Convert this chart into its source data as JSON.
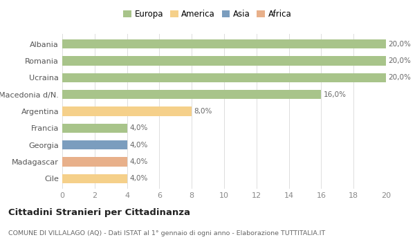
{
  "countries": [
    "Albania",
    "Romania",
    "Ucraina",
    "Macedonia d/N.",
    "Argentina",
    "Francia",
    "Georgia",
    "Madagascar",
    "Cile"
  ],
  "values": [
    20.0,
    20.0,
    20.0,
    16.0,
    8.0,
    4.0,
    4.0,
    4.0,
    4.0
  ],
  "labels": [
    "20,0%",
    "20,0%",
    "20,0%",
    "16,0%",
    "8,0%",
    "4,0%",
    "4,0%",
    "4,0%",
    "4,0%"
  ],
  "continents": [
    "Europa",
    "Europa",
    "Europa",
    "Europa",
    "America",
    "Europa",
    "Asia",
    "Africa",
    "America"
  ],
  "colors": {
    "Europa": "#a8c48a",
    "America": "#f5d08a",
    "Asia": "#7b9dbe",
    "Africa": "#e8b08a"
  },
  "legend_order": [
    "Europa",
    "America",
    "Asia",
    "Africa"
  ],
  "xlim": [
    0,
    20
  ],
  "xticks": [
    0,
    2,
    4,
    6,
    8,
    10,
    12,
    14,
    16,
    18,
    20
  ],
  "title": "Cittadini Stranieri per Cittadinanza",
  "subtitle": "COMUNE DI VILLALAGO (AQ) - Dati ISTAT al 1° gennaio di ogni anno - Elaborazione TUTTITALIA.IT",
  "background_color": "#ffffff",
  "grid_color": "#dddddd"
}
